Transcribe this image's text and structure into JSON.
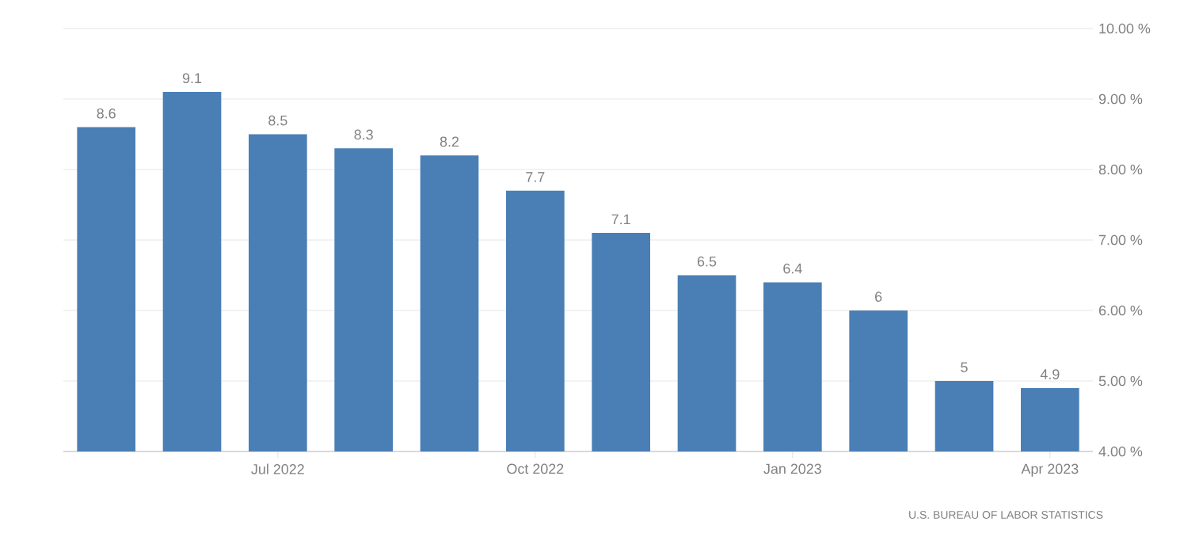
{
  "chart_data": {
    "type": "bar",
    "categories": [
      null,
      null,
      "Jul 2022",
      null,
      null,
      "Oct 2022",
      null,
      null,
      "Jan 2023",
      null,
      null,
      "Apr 2023"
    ],
    "values": [
      8.6,
      9.1,
      8.5,
      8.3,
      8.2,
      7.7,
      7.1,
      6.5,
      6.4,
      6,
      5,
      4.9
    ],
    "value_labels": [
      "8.6",
      "9.1",
      "8.5",
      "8.3",
      "8.2",
      "7.7",
      "7.1",
      "6.5",
      "6.4",
      "6",
      "5",
      "4.9"
    ],
    "color": "#4a7fb5",
    "ylim": [
      4,
      10
    ],
    "yticks": [
      {
        "value": 4,
        "label": "4.00 %"
      },
      {
        "value": 5,
        "label": "5.00 %"
      },
      {
        "value": 6,
        "label": "6.00 %"
      },
      {
        "value": 7,
        "label": "7.00 %"
      },
      {
        "value": 8,
        "label": "8.00 %"
      },
      {
        "value": 9,
        "label": "9.00 %"
      },
      {
        "value": 10,
        "label": "10.00 %"
      }
    ],
    "grid": "y",
    "annotations": [
      "U.S. BUREAU OF LABOR STATISTICS"
    ]
  }
}
